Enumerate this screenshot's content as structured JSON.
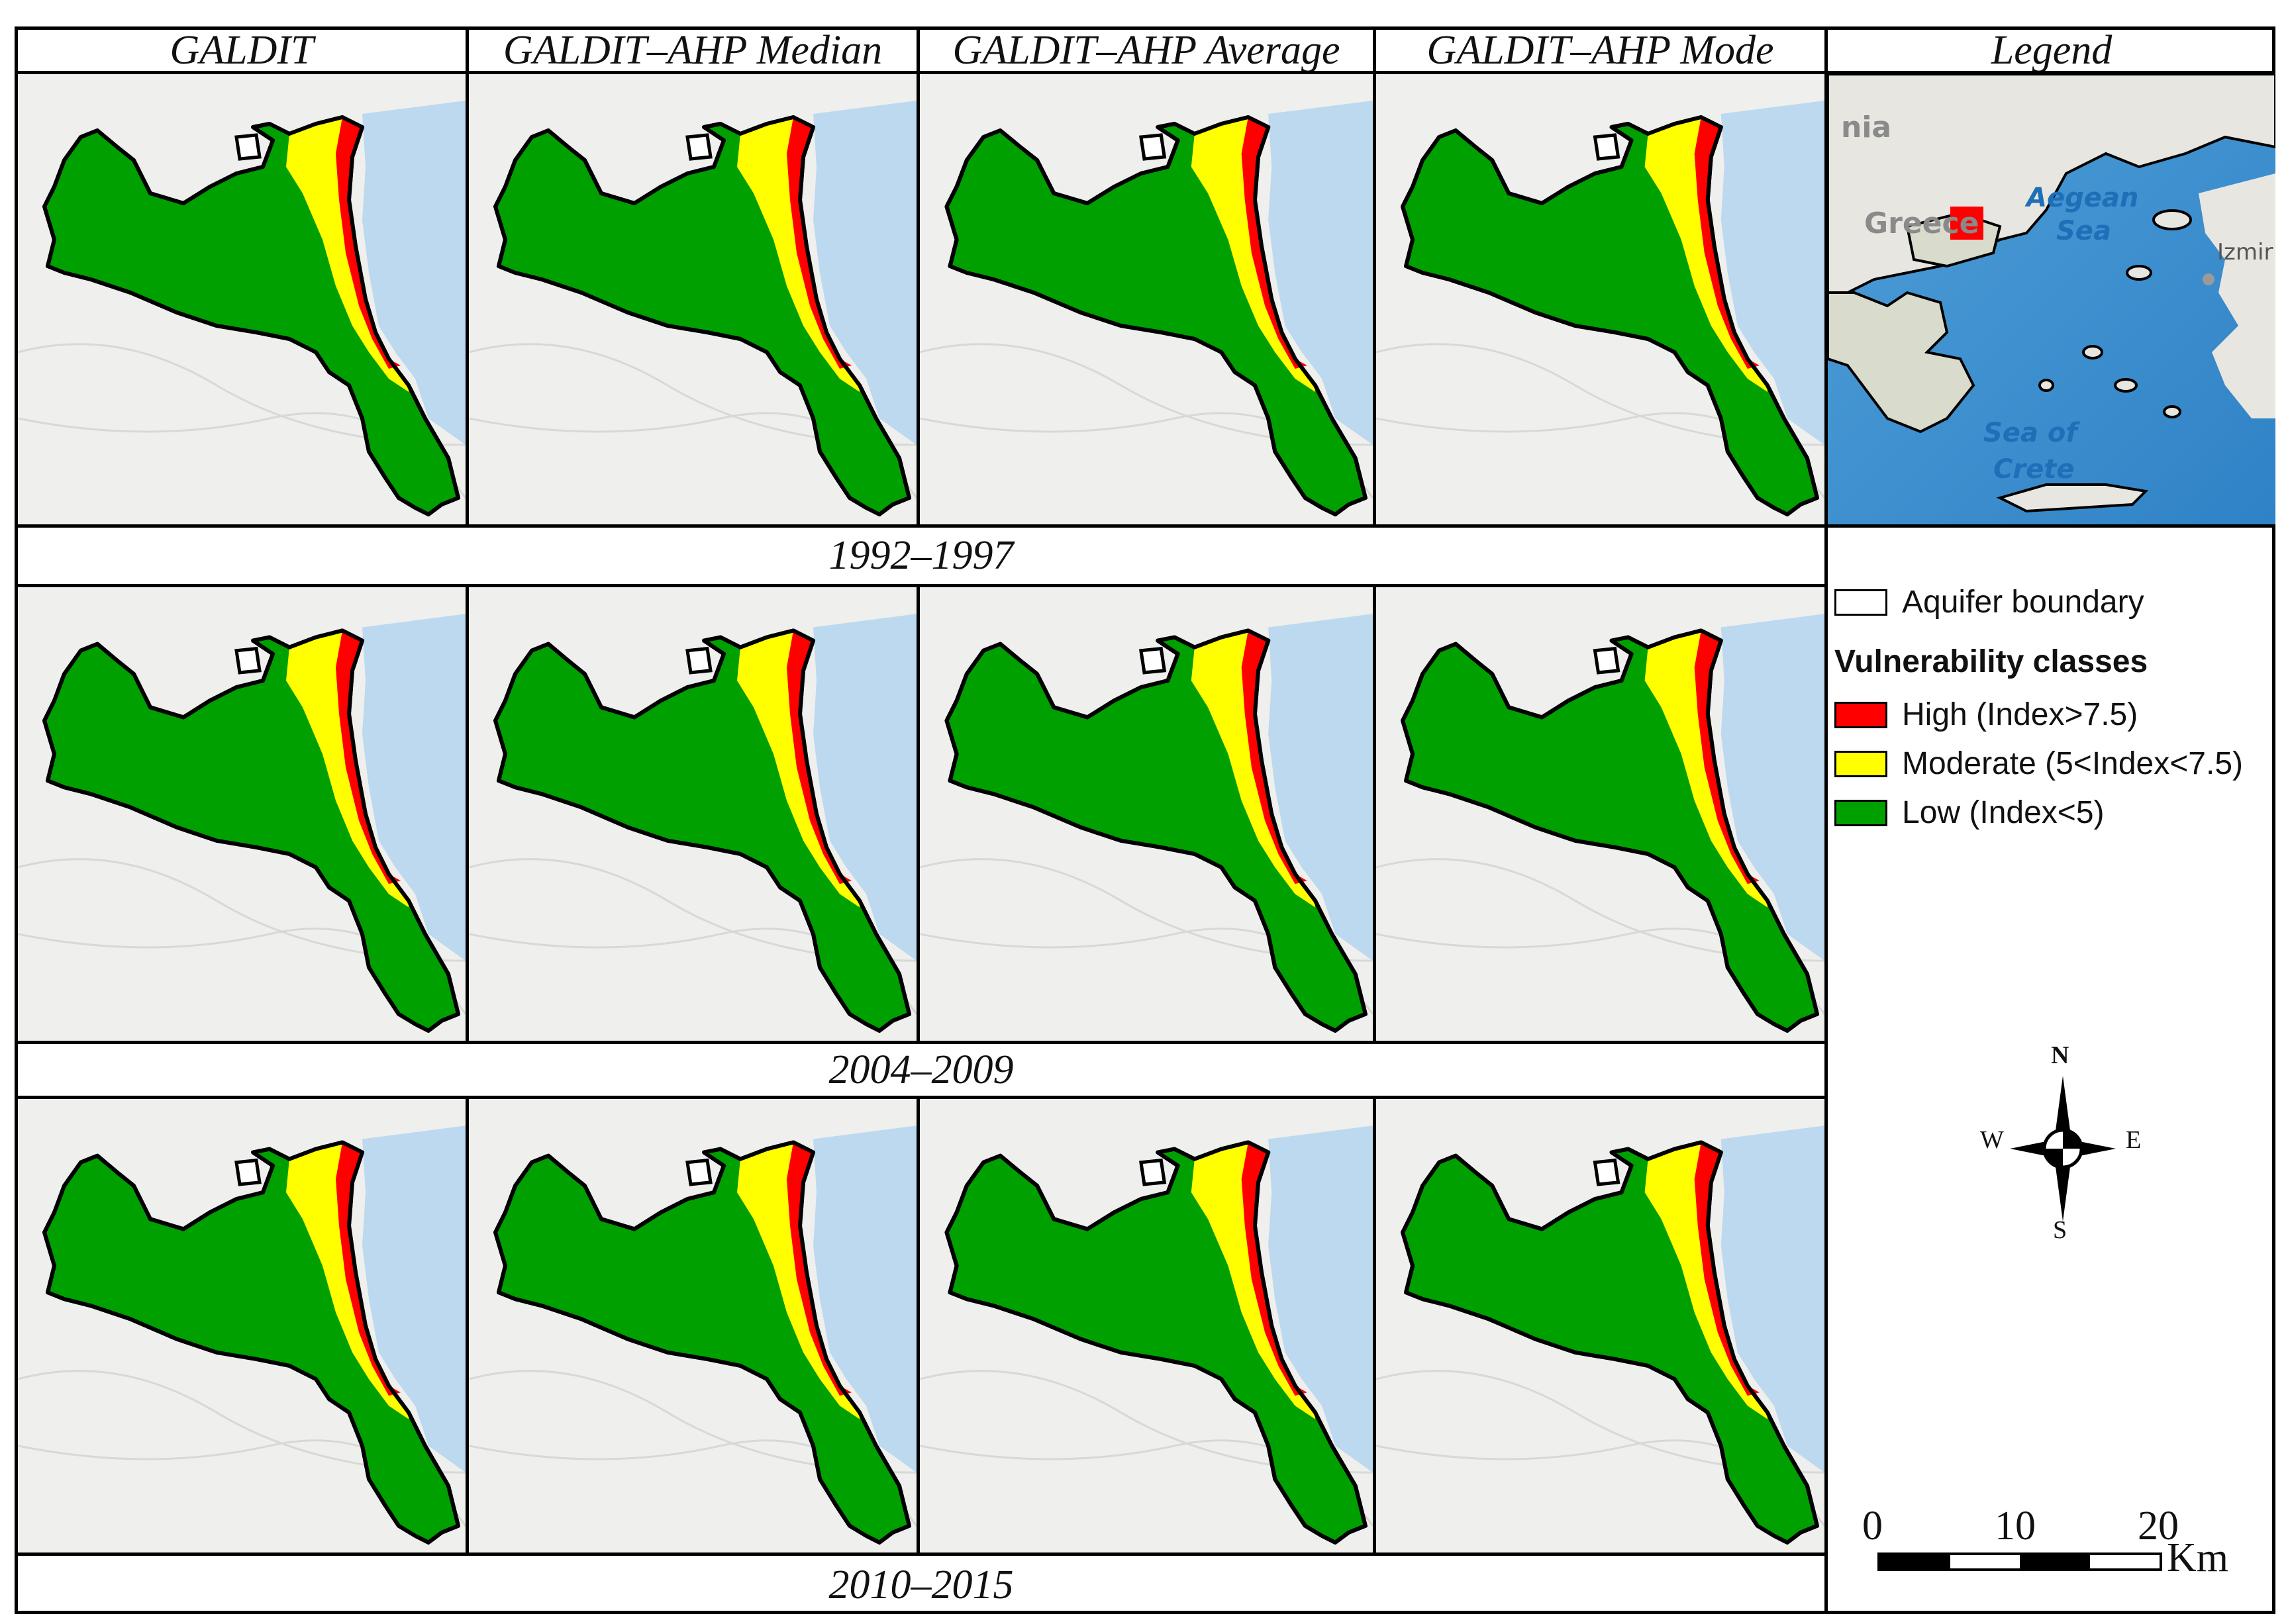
{
  "columns": [
    {
      "title": "GALDIT"
    },
    {
      "title": "GALDIT–AHP Median"
    },
    {
      "title": "GALDIT–AHP Average"
    },
    {
      "title": "GALDIT–AHP Mode"
    }
  ],
  "legend_header": "Legend",
  "periods": [
    "1992–1997",
    "2004–2009",
    "2010–2015"
  ],
  "inset_map": {
    "labels": {
      "aegean": "Aegean",
      "sea": "Sea",
      "sea_of": "Sea of",
      "crete": "Crete",
      "izmir": "Izmir",
      "greece": "Greece",
      "nia": "nia"
    }
  },
  "legend": {
    "boundary_label": "Aquifer boundary",
    "classes_title": "Vulnerability classes",
    "classes": [
      {
        "label": "High (Index>7.5)",
        "color": "#ff0000"
      },
      {
        "label": "Moderate (5<Index<7.5)",
        "color": "#ffff00"
      },
      {
        "label": "Low (Index<5)",
        "color": "#00a000"
      }
    ]
  },
  "compass": {
    "n": "N",
    "s": "S",
    "e": "E",
    "w": "W"
  },
  "scale_bar": {
    "ticks": [
      "0",
      "10",
      "20"
    ],
    "unit": "Km"
  }
}
